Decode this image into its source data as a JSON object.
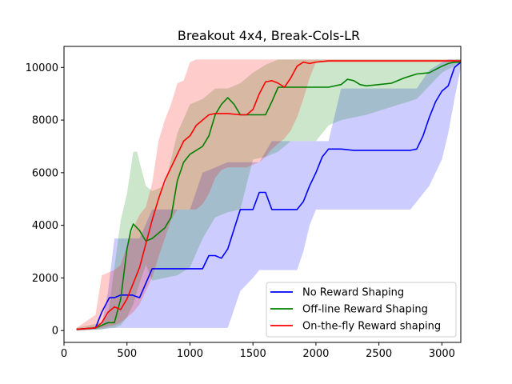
{
  "chart_data": {
    "type": "line",
    "title": "Breakout 4x4, Break-Cols-LR",
    "xlabel": "",
    "ylabel": "",
    "xlim": [
      0,
      3150
    ],
    "ylim": [
      -450,
      10800
    ],
    "x_ticks": [
      0,
      500,
      1000,
      1500,
      2000,
      2500,
      3000
    ],
    "y_ticks": [
      0,
      2000,
      4000,
      6000,
      8000,
      10000
    ],
    "grid": false,
    "legend_position": "lower right",
    "series": [
      {
        "name": "No Reward Shaping",
        "color": "#0000ff",
        "x": [
          100,
          250,
          300,
          360,
          400,
          450,
          540,
          600,
          700,
          800,
          1000,
          1100,
          1150,
          1200,
          1250,
          1300,
          1400,
          1500,
          1550,
          1600,
          1650,
          1750,
          1800,
          1850,
          1900,
          1950,
          2000,
          2050,
          2100,
          2200,
          2300,
          2500,
          2750,
          2800,
          2850,
          2900,
          2950,
          3000,
          3050,
          3100,
          3150
        ],
        "y": [
          50,
          100,
          700,
          1250,
          1250,
          1350,
          1350,
          1250,
          2350,
          2350,
          2350,
          2350,
          2850,
          2850,
          2750,
          3100,
          4600,
          4600,
          5250,
          5250,
          4600,
          4600,
          4600,
          4600,
          4900,
          5500,
          6000,
          6600,
          6900,
          6900,
          6850,
          6850,
          6850,
          6900,
          7400,
          8100,
          8700,
          9100,
          9300,
          10000,
          10200
        ]
      },
      {
        "name": "Off-line Reward Shaping",
        "color": "#008000",
        "x": [
          100,
          250,
          300,
          350,
          400,
          450,
          500,
          530,
          550,
          600,
          650,
          700,
          750,
          800,
          850,
          900,
          950,
          1000,
          1050,
          1100,
          1150,
          1200,
          1250,
          1300,
          1350,
          1400,
          1500,
          1600,
          1650,
          1700,
          1800,
          1900,
          2000,
          2100,
          2200,
          2250,
          2300,
          2350,
          2400,
          2500,
          2600,
          2700,
          2800,
          2900,
          3000,
          3050,
          3100,
          3150
        ],
        "y": [
          50,
          100,
          200,
          300,
          300,
          1200,
          3100,
          3800,
          4050,
          3800,
          3400,
          3500,
          3700,
          3900,
          4300,
          5700,
          6400,
          6700,
          6850,
          7000,
          7400,
          8200,
          8600,
          8850,
          8600,
          8200,
          8200,
          8200,
          8700,
          9250,
          9250,
          9250,
          9250,
          9250,
          9350,
          9550,
          9500,
          9350,
          9300,
          9350,
          9400,
          9600,
          9750,
          9800,
          10050,
          10150,
          10200,
          10200
        ]
      },
      {
        "name": "On-the-fly Reward shaping",
        "color": "#ff0000",
        "x": [
          100,
          250,
          300,
          350,
          400,
          450,
          500,
          550,
          600,
          650,
          700,
          750,
          800,
          850,
          900,
          950,
          1000,
          1050,
          1100,
          1150,
          1200,
          1300,
          1400,
          1450,
          1500,
          1550,
          1600,
          1650,
          1700,
          1750,
          1800,
          1850,
          1900,
          1950,
          2000,
          2100,
          2200,
          2300,
          2400,
          2500,
          2600,
          2700,
          2800,
          2900,
          3000,
          3150
        ],
        "y": [
          50,
          100,
          300,
          700,
          900,
          800,
          1200,
          1800,
          2400,
          3300,
          4200,
          5000,
          5700,
          6200,
          6700,
          7200,
          7400,
          7800,
          8000,
          8200,
          8250,
          8250,
          8200,
          8200,
          8400,
          9000,
          9450,
          9500,
          9400,
          9250,
          9600,
          10050,
          10200,
          10150,
          10200,
          10250,
          10250,
          10250,
          10250,
          10250,
          10250,
          10250,
          10250,
          10250,
          10250,
          10250
        ]
      }
    ],
    "bands": [
      {
        "series": "No Reward Shaping",
        "color": "#0000ff",
        "x": [
          100,
          300,
          350,
          400,
          450,
          500,
          550,
          600,
          700,
          800,
          1000,
          1100,
          1300,
          1400,
          1500,
          1550,
          1650,
          1700,
          1750,
          1850,
          1900,
          1950,
          2000,
          2100,
          2200,
          2400,
          2600,
          2750,
          2800,
          2900,
          3000,
          3050,
          3100,
          3150
        ],
        "lower": [
          0,
          50,
          80,
          100,
          100,
          100,
          100,
          100,
          100,
          100,
          100,
          100,
          100,
          1500,
          2000,
          2300,
          2300,
          2300,
          2300,
          2300,
          3000,
          4000,
          4600,
          4600,
          4600,
          4600,
          4600,
          4600,
          4900,
          5500,
          6500,
          7500,
          8800,
          10000
        ],
        "upper": [
          50,
          200,
          1500,
          3500,
          3500,
          3500,
          3500,
          3500,
          4600,
          4600,
          4600,
          6000,
          6400,
          6400,
          6400,
          6400,
          7200,
          7200,
          7200,
          7200,
          7200,
          7200,
          7200,
          7200,
          9200,
          9200,
          9200,
          9200,
          9200,
          9900,
          10200,
          10300,
          10300,
          10300
        ]
      },
      {
        "series": "Off-line Reward Shaping",
        "color": "#008000",
        "x": [
          100,
          300,
          350,
          400,
          450,
          500,
          550,
          580,
          600,
          650,
          700,
          800,
          900,
          1000,
          1100,
          1200,
          1300,
          1400,
          1500,
          1600,
          1700,
          1800,
          1900,
          2000,
          2100,
          2200,
          2400,
          2600,
          2800,
          3000,
          3150
        ],
        "lower": [
          0,
          50,
          100,
          100,
          200,
          500,
          1000,
          1500,
          1800,
          2500,
          1900,
          2000,
          2100,
          2400,
          3500,
          4300,
          4500,
          4600,
          6500,
          6600,
          6800,
          7200,
          7200,
          7200,
          7800,
          8000,
          8200,
          8500,
          8800,
          9800,
          10200
        ],
        "upper": [
          100,
          300,
          600,
          2400,
          4200,
          5200,
          6800,
          6800,
          6400,
          5500,
          5300,
          5500,
          7500,
          8600,
          8800,
          9200,
          9200,
          9400,
          9800,
          10100,
          10300,
          10300,
          10300,
          10300,
          10300,
          10300,
          10300,
          10300,
          10300,
          10300,
          10300
        ]
      },
      {
        "series": "On-the-fly Reward shaping",
        "color": "#ff0000",
        "x": [
          100,
          250,
          300,
          350,
          400,
          450,
          500,
          550,
          600,
          650,
          700,
          750,
          800,
          850,
          900,
          950,
          1000,
          1050,
          1100,
          1150,
          1200,
          1250,
          1300,
          1350,
          1400,
          1450,
          1500,
          1550,
          1600,
          1650,
          1700,
          1750,
          1800,
          1850,
          1900,
          1950,
          2000,
          3150
        ],
        "lower": [
          0,
          50,
          100,
          150,
          200,
          300,
          500,
          700,
          1000,
          1500,
          2000,
          2800,
          3500,
          4200,
          4600,
          4600,
          4600,
          4600,
          4800,
          5200,
          5800,
          6100,
          6200,
          6200,
          6200,
          6200,
          6300,
          6400,
          6600,
          6900,
          7100,
          7300,
          7600,
          8100,
          8800,
          9600,
          10200,
          10200
        ],
        "upper": [
          100,
          600,
          2100,
          2200,
          2300,
          2500,
          3200,
          3900,
          4400,
          4700,
          5600,
          7200,
          8000,
          8600,
          9400,
          9500,
          10200,
          10300,
          10300,
          10300,
          10300,
          10300,
          10300,
          10300,
          10300,
          10300,
          10300,
          10300,
          10300,
          10300,
          10300,
          10300,
          10300,
          10300,
          10300,
          10300,
          10300,
          10300
        ]
      }
    ]
  }
}
